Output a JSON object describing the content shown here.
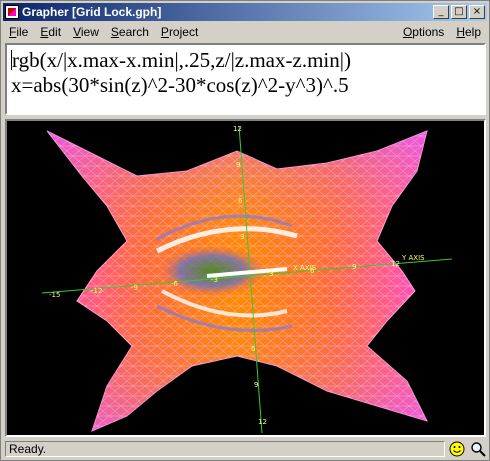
{
  "window": {
    "title": "Grapher [Grid Lock.gph]"
  },
  "caption_buttons": {
    "minimize": "_",
    "maximize": "□",
    "close": "×"
  },
  "menu": {
    "left": [
      {
        "label": "File",
        "key": "F",
        "rest": "ile"
      },
      {
        "label": "Edit",
        "key": "E",
        "rest": "dit"
      },
      {
        "label": "View",
        "key": "V",
        "rest": "iew"
      },
      {
        "label": "Search",
        "key": "S",
        "rest": "earch"
      },
      {
        "label": "Project",
        "key": "P",
        "rest": "roject"
      }
    ],
    "right": [
      {
        "label": "Options",
        "key": "O",
        "rest": "ptions"
      },
      {
        "label": "Help",
        "key": "H",
        "rest": "elp"
      }
    ]
  },
  "editor": {
    "line1": "rgb(x/|x.max-x.min|,.25,z/|z.max-z.min|)",
    "line2": "x=abs(30*sin(z)^2-30*cos(z)^2-y^3)^.5"
  },
  "graph": {
    "axis_labels": {
      "y": "Y AXIS",
      "x": "X AXIS"
    },
    "ticks_vertical_top": [
      "12",
      "9",
      "6",
      "3"
    ],
    "ticks_vertical_bottom": [
      "6",
      "9",
      "12"
    ],
    "ticks_horizontal_left": [
      "-15",
      "-12",
      "-9",
      "-6",
      "-3"
    ],
    "ticks_horizontal_right": [
      "3",
      "6",
      "9",
      "12"
    ],
    "colors": {
      "background": "#000000",
      "axis": "#33cc33",
      "surface_pink": "#ff55dd",
      "surface_orange": "#ff7a00"
    }
  },
  "status": {
    "text": "Ready.",
    "icons": [
      "smiley-icon",
      "magnifier-icon"
    ]
  }
}
